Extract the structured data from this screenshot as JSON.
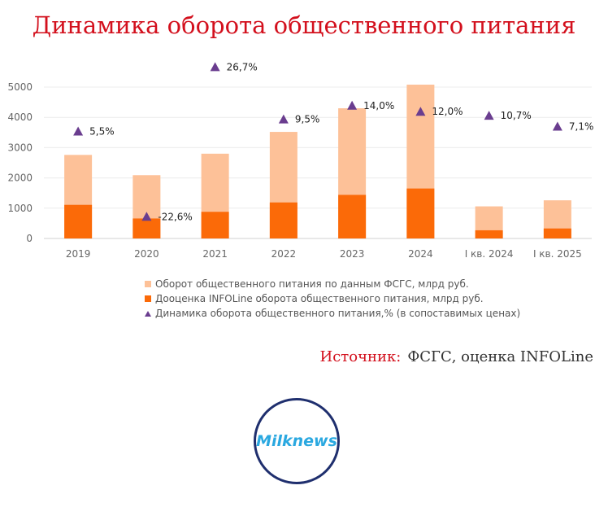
{
  "title": "Динамика оборота общественного питания",
  "source": {
    "label": "Источник:",
    "text": "ФСГС, оценка INFOLine"
  },
  "logo": {
    "text": "Milknews"
  },
  "colors": {
    "turnover": "#fdc198",
    "infoline": "#fb6a08",
    "dynamics": "#6a3d8f",
    "title": "#d3101d"
  },
  "chart_data": {
    "type": "bar",
    "categories": [
      "2019",
      "2020",
      "2021",
      "2022",
      "2023",
      "2024",
      "I кв. 2024",
      "I кв. 2025"
    ],
    "series": [
      {
        "name": "Оборот общественного питания по данным ФСГС, млрд руб.",
        "values": [
          2760,
          2090,
          2800,
          3520,
          4300,
          5080,
          1060,
          1260
        ]
      },
      {
        "name": "Дооценка INFOLine оборота общественного питания, млрд руб.",
        "values": [
          1110,
          660,
          880,
          1190,
          1440,
          1650,
          270,
          330
        ]
      },
      {
        "name": "Динамика оборота общественного питания,% (в сопоставимых ценах)",
        "type": "scatter",
        "values": [
          5.5,
          -22.6,
          26.7,
          9.5,
          14.0,
          12.0,
          10.7,
          7.1
        ],
        "labels": [
          "5,5%",
          "-22,6%",
          "26,7%",
          "9,5%",
          "14,0%",
          "12,0%",
          "10,7%",
          "7,1%"
        ]
      }
    ],
    "y_ticks": [
      "0",
      "1000",
      "2000",
      "3000",
      "4000",
      "5000"
    ],
    "ylim": [
      0,
      5000
    ],
    "legend_position": "bottom",
    "grid": true
  }
}
